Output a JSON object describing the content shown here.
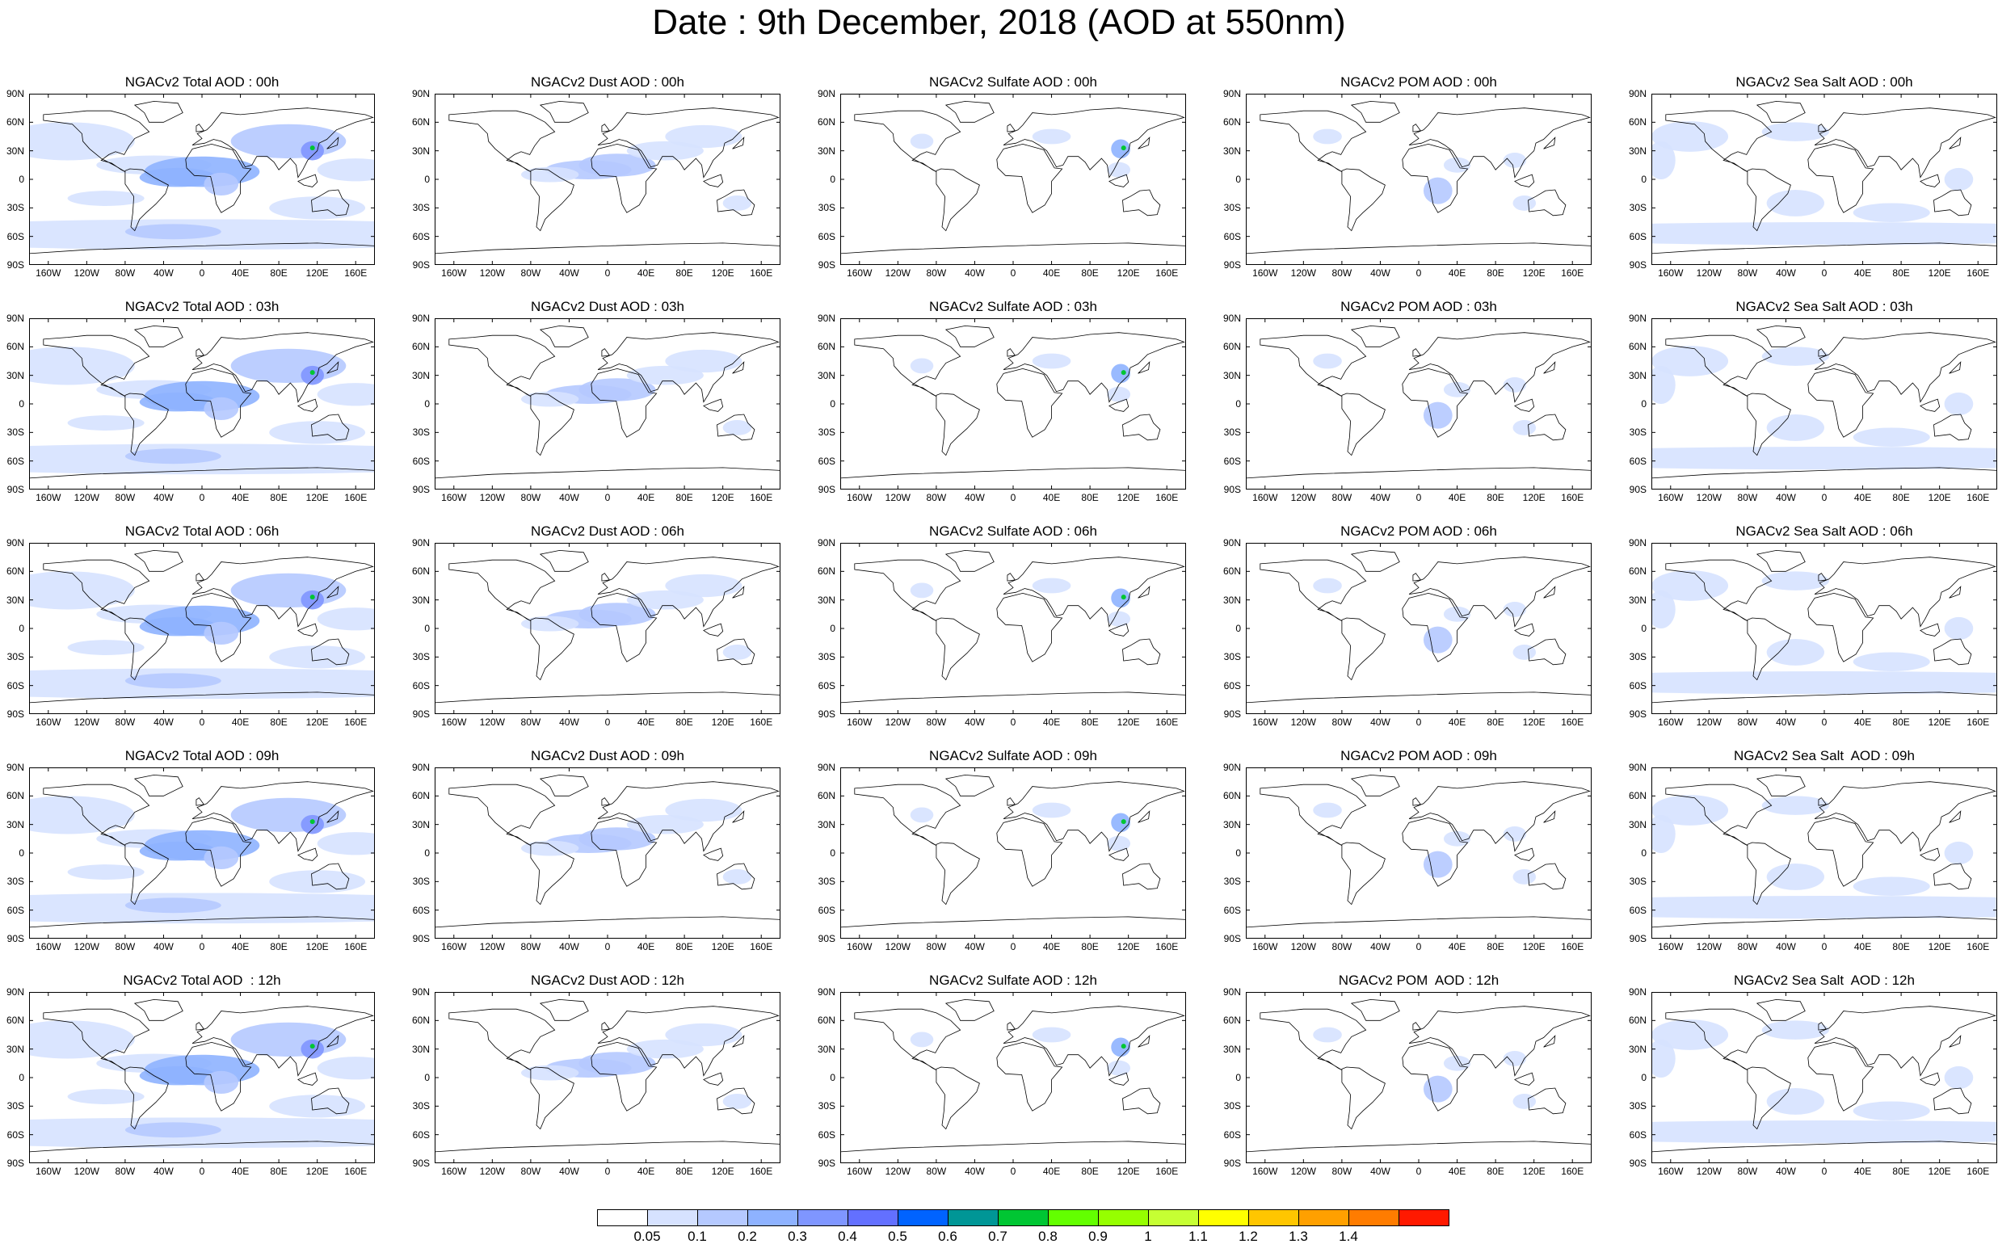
{
  "title": "Date : 9th December, 2018 (AOD at 550nm)",
  "columns": [
    "Total",
    "Dust",
    "Sulfate",
    "POM",
    "Sea Salt"
  ],
  "panels": [
    [
      "NGACv2 Total AOD : 00h",
      "NGACv2 Dust AOD : 00h",
      "NGACv2 Sulfate AOD : 00h",
      "NGACv2 POM AOD : 00h",
      "NGACv2 Sea Salt AOD : 00h"
    ],
    [
      "NGACv2 Total AOD : 03h",
      "NGACv2 Dust AOD : 03h",
      "NGACv2 Sulfate AOD : 03h",
      "NGACv2 POM AOD : 03h",
      "NGACv2 Sea Salt AOD : 03h"
    ],
    [
      "NGACv2 Total AOD : 06h",
      "NGACv2 Dust AOD : 06h",
      "NGACv2 Sulfate AOD : 06h",
      "NGACv2 POM AOD : 06h",
      "NGACv2 Sea Salt AOD : 06h"
    ],
    [
      "NGACv2 Total AOD : 09h",
      "NGACv2 Dust AOD : 09h",
      "NGACv2 Sulfate AOD : 09h",
      "NGACv2 POM AOD : 09h",
      "NGACv2 Sea Salt  AOD : 09h"
    ],
    [
      "NGACv2 Total AOD  : 12h",
      "NGACv2 Dust AOD : 12h",
      "NGACv2 Sulfate AOD : 12h",
      "NGACv2 POM  AOD : 12h",
      "NGACv2 Sea Salt  AOD : 12h"
    ]
  ],
  "lat_labels": [
    "90N",
    "60N",
    "30N",
    "0",
    "30S",
    "60S",
    "90S"
  ],
  "lon_labels": [
    "160W",
    "120W",
    "80W",
    "40W",
    "0",
    "40E",
    "80E",
    "120E",
    "160E"
  ],
  "colorbar": {
    "levels": [
      "0.05",
      "0.1",
      "0.2",
      "0.3",
      "0.4",
      "0.5",
      "0.6",
      "0.7",
      "0.8",
      "0.9",
      "1",
      "1.1",
      "1.2",
      "1.3",
      "1.4"
    ],
    "colors": [
      "#ffffff",
      "#d6e2ff",
      "#b5c9ff",
      "#8eb2ff",
      "#7f96ff",
      "#6370ff",
      "#0063ff",
      "#009696",
      "#00c633",
      "#63ff00",
      "#96ff00",
      "#c6ff33",
      "#ffff00",
      "#ffc600",
      "#ffa000",
      "#ff7c00",
      "#ff1900"
    ]
  },
  "colors": {
    "land_outline": "#000000",
    "aerosol_light": "#d6e2ff",
    "aerosol_mid": "#b5c9ff",
    "aerosol_strong": "#7f96ff"
  }
}
